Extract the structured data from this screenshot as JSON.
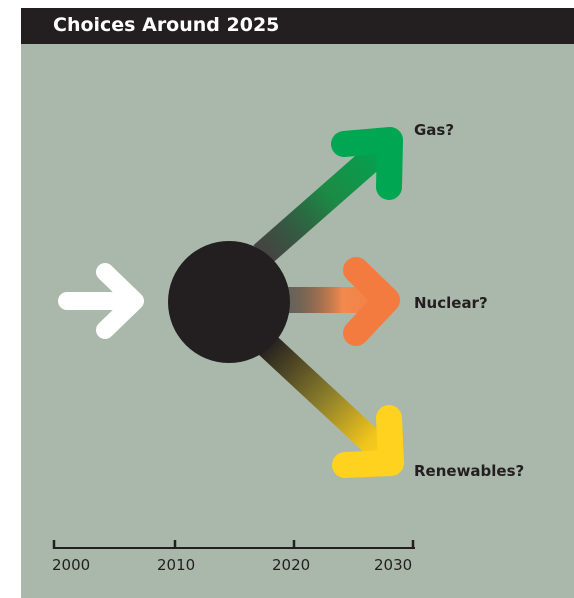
{
  "title": "Choices Around 2025",
  "options": [
    {
      "id": "gas",
      "label": "Gas?",
      "color": "#00a651"
    },
    {
      "id": "nuclear",
      "label": "Nuclear?",
      "color": "#f47b3f"
    },
    {
      "id": "renewables",
      "label": "Renewables?",
      "color": "#ffd21f"
    }
  ],
  "timeline": {
    "ticks": [
      "2000",
      "2010",
      "2020",
      "2030"
    ]
  },
  "colors": {
    "background": "#a9b8aa",
    "header": "#231f20",
    "hub": "#231f20",
    "incoming_arrow": "#ffffff"
  }
}
